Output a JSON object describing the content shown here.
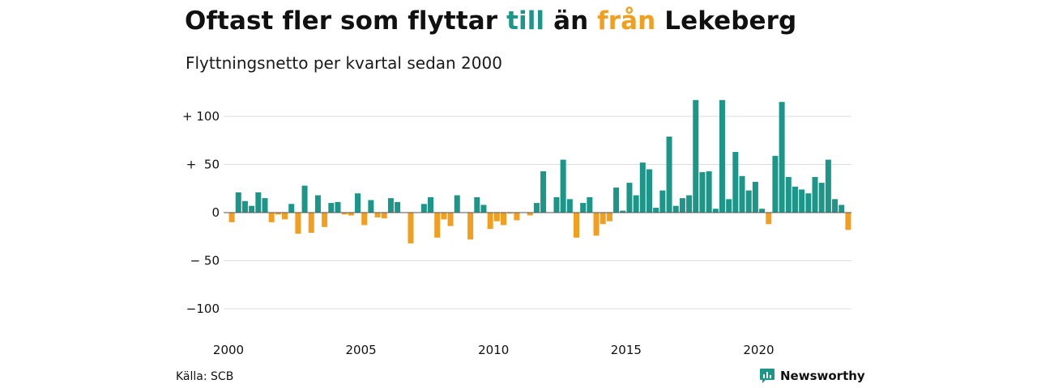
{
  "title": {
    "part1": "Oftast fler som flyttar ",
    "till": "till",
    "part2": " än ",
    "fran": "från",
    "part3": " Lekeberg"
  },
  "subtitle": "Flyttningsnetto per kvartal sedan 2000",
  "source": "Källa: SCB",
  "brand": "Newsworthy",
  "colors": {
    "positive": "#1b9688",
    "negative": "#f29f20",
    "grid": "#dddddd",
    "zero_line": "#555555",
    "text": "#111111"
  },
  "chart_data": {
    "type": "bar",
    "title": "Oftast fler som flyttar till än från Lekeberg",
    "subtitle": "Flyttningsnetto per kvartal sedan 2000",
    "ylim": [
      -125,
      125
    ],
    "y_ticks": [
      100,
      50,
      0,
      -50,
      -100
    ],
    "y_tick_labels": [
      "+ 100",
      "+  50",
      "0",
      "− 50",
      "−100"
    ],
    "x_tick_labels": [
      "2000",
      "2005",
      "2010",
      "2015",
      "2020"
    ],
    "x_tick_years": [
      2000,
      2005,
      2010,
      2015,
      2020
    ],
    "first_year": 2000,
    "quarters_per_year": 4,
    "grid": true,
    "legend": "none",
    "values": [
      -10,
      21,
      12,
      7,
      21,
      15,
      -10,
      -2,
      -7,
      9,
      -22,
      28,
      -21,
      18,
      -15,
      10,
      11,
      -2,
      -3,
      20,
      -13,
      13,
      -5,
      -6,
      15,
      11,
      0,
      -32,
      0,
      9,
      16,
      -26,
      -7,
      -14,
      18,
      0,
      -28,
      16,
      8,
      -17,
      -9,
      -13,
      -1,
      -8,
      0,
      -3,
      10,
      43,
      0,
      16,
      55,
      14,
      -26,
      10,
      16,
      -24,
      -12,
      -9,
      26,
      2,
      31,
      18,
      52,
      45,
      5,
      23,
      79,
      7,
      15,
      18,
      117,
      42,
      43,
      4,
      117,
      14,
      63,
      38,
      23,
      32,
      4,
      -12,
      59,
      115,
      37,
      27,
      24,
      20,
      37,
      31,
      55,
      14,
      8,
      -18
    ]
  }
}
